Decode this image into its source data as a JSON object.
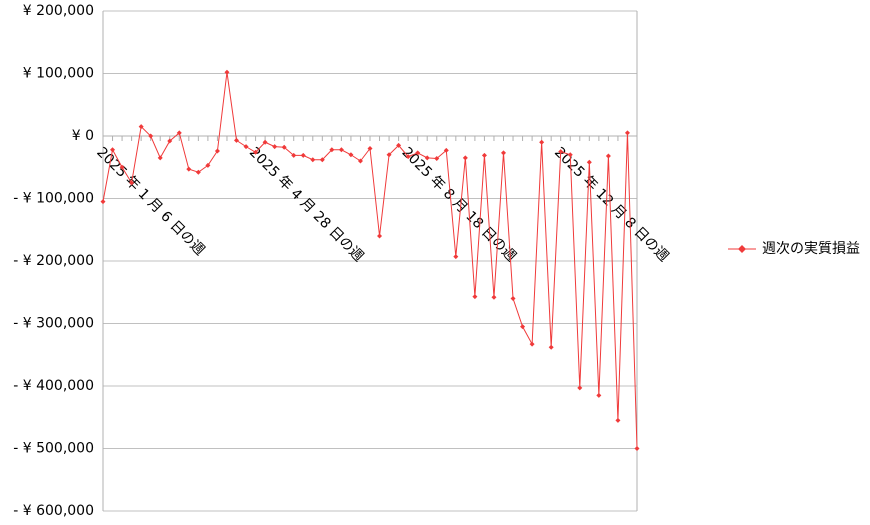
{
  "chart_data": {
    "type": "line",
    "categories": [
      "2025 年 1 月 6 日の週",
      null,
      null,
      null,
      null,
      null,
      null,
      null,
      null,
      null,
      null,
      null,
      null,
      null,
      null,
      null,
      "2025 年 4 月 28 日の週",
      null,
      null,
      null,
      null,
      null,
      null,
      null,
      null,
      null,
      null,
      null,
      null,
      null,
      null,
      null,
      "2025 年 8 月 18 日の週",
      null,
      null,
      null,
      null,
      null,
      null,
      null,
      null,
      null,
      null,
      null,
      null,
      null,
      null,
      null,
      "2025 年 12 月 8 日の週",
      null,
      null,
      null,
      null,
      null,
      null,
      null,
      null
    ],
    "series": [
      {
        "name": "週次の実質損益",
        "color": "#f03a3a",
        "values": [
          -105000,
          -22000,
          -50000,
          -75000,
          15000,
          0,
          -35000,
          -8000,
          5000,
          -53000,
          -58000,
          -47000,
          -24000,
          102000,
          -7000,
          -17000,
          -26000,
          -10000,
          -17000,
          -18000,
          -31000,
          -31000,
          -38000,
          -38000,
          -22000,
          -22000,
          -30000,
          -40000,
          -20000,
          -160000,
          -30000,
          -15000,
          -33000,
          -27000,
          -35000,
          -36000,
          -23000,
          -193000,
          -35000,
          -257000,
          -31000,
          -258000,
          -27000,
          -260000,
          -305000,
          -333000,
          -10000,
          -338000,
          -25000,
          -30000,
          -403000,
          -42000,
          -415000,
          -32000,
          -455000,
          5000,
          -500000
        ]
      }
    ],
    "ylim": [
      -600000,
      200000
    ],
    "yticks": [
      {
        "value": 200000,
        "label": "¥ 200,000"
      },
      {
        "value": 100000,
        "label": "¥ 100,000"
      },
      {
        "value": 0,
        "label": "¥ 0"
      },
      {
        "value": -100000,
        "label": "- ¥ 100,000"
      },
      {
        "value": -200000,
        "label": "- ¥ 200,000"
      },
      {
        "value": -300000,
        "label": "- ¥ 300,000"
      },
      {
        "value": -400000,
        "label": "- ¥ 400,000"
      },
      {
        "value": -500000,
        "label": "- ¥ 500,000"
      },
      {
        "value": -600000,
        "label": "- ¥ 600,000"
      }
    ],
    "negative_label_color": "#e00000",
    "grid": true,
    "legend": "right"
  }
}
